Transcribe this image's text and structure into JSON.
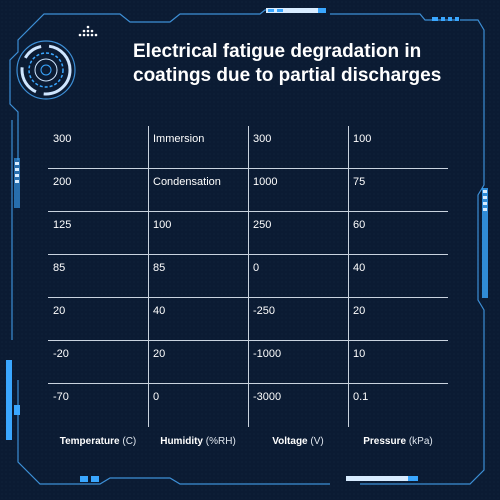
{
  "title": {
    "line1": "Electrical fatigue degradation in",
    "line2": "coatings due to partial discharges"
  },
  "table": {
    "rows": [
      [
        "300",
        "Immersion",
        "300",
        "100"
      ],
      [
        "200",
        "Condensation",
        "1000",
        "75"
      ],
      [
        "125",
        "100",
        "250",
        "60"
      ],
      [
        "85",
        "85",
        "0",
        "40"
      ],
      [
        "20",
        "40",
        "-250",
        "20"
      ],
      [
        "-20",
        "20",
        "-1000",
        "10"
      ],
      [
        "-70",
        "0",
        "-3000",
        "0.1"
      ]
    ]
  },
  "legend": [
    {
      "name": "Temperature",
      "unit": "(C)"
    },
    {
      "name": "Humidity",
      "unit": "(%RH)"
    },
    {
      "name": "Voltage",
      "unit": "(V)"
    },
    {
      "name": "Pressure",
      "unit": "(kPa)"
    }
  ],
  "colors": {
    "background": "#0b1b33",
    "frame": "#3d8fd6",
    "accent": "#3aa7ff",
    "text": "#ffffff"
  }
}
